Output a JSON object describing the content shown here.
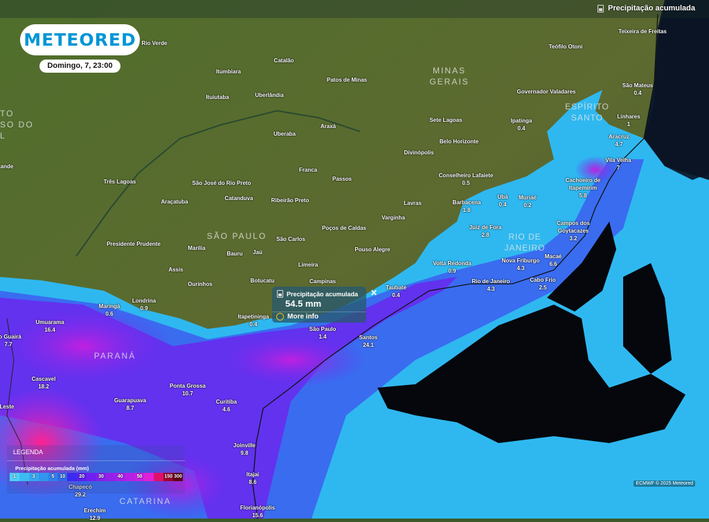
{
  "header": {
    "layer_name": "Precipitação acumulada",
    "layer_icon": "rain-gauge-icon"
  },
  "brand": {
    "logo_text": "METEORED",
    "date": "Domingo, 7, 23:00"
  },
  "popup": {
    "title": "Precipitação acumulada",
    "value": "54.5 mm",
    "more_info": "More info",
    "close": "✕"
  },
  "legend": {
    "heading": "LEGENDA",
    "subtitle": "Precipitação acumulada (mm)",
    "steps": [
      {
        "label": "1",
        "color": "#4fd0f5"
      },
      {
        "label": "",
        "color": "#3cbcf2"
      },
      {
        "label": "3",
        "color": "#35a8ef"
      },
      {
        "label": "",
        "color": "#3296ec"
      },
      {
        "label": "5",
        "color": "#3080ea"
      },
      {
        "label": "10",
        "color": "#2f6ae8"
      },
      {
        "label": "",
        "color": "#3a2bf0"
      },
      {
        "label": "20",
        "color": "#5a20f0"
      },
      {
        "label": "",
        "color": "#7020ee"
      },
      {
        "label": "30",
        "color": "#8520ec"
      },
      {
        "label": "",
        "color": "#9420ea"
      },
      {
        "label": "40",
        "color": "#a620e8"
      },
      {
        "label": "",
        "color": "#b620e6"
      },
      {
        "label": "50",
        "color": "#c820e4"
      },
      {
        "label": "",
        "color": "#e020d8"
      },
      {
        "label": "",
        "color": "#e0106a"
      },
      {
        "label": "150",
        "color": "#a00030"
      },
      {
        "label": "300",
        "color": "#600018"
      }
    ]
  },
  "copyright": "ECMWF © 2025 Meteored",
  "states": [
    {
      "name": "MINAS\nGERAIS"
    },
    {
      "name": "SÃO PAULO"
    },
    {
      "name": "RIO DE\nJANEIRO"
    },
    {
      "name": "ESPÍRITO\nSANTO"
    },
    {
      "name": "PARANÁ"
    },
    {
      "name": "CATARINA"
    },
    {
      "name": "TO\nSO DO\nL"
    }
  ],
  "cities": [
    {
      "name": "Rio Verde",
      "value": ""
    },
    {
      "name": "Catalão",
      "value": ""
    },
    {
      "name": "Itumbiara",
      "value": ""
    },
    {
      "name": "Patos de Minas",
      "value": ""
    },
    {
      "name": "Ituiutaba",
      "value": ""
    },
    {
      "name": "Uberlândia",
      "value": ""
    },
    {
      "name": "Uberaba",
      "value": ""
    },
    {
      "name": "Araxá",
      "value": ""
    },
    {
      "name": "Franca",
      "value": ""
    },
    {
      "name": "Passos",
      "value": ""
    },
    {
      "name": "Três Lagoas",
      "value": ""
    },
    {
      "name": "São José do Rio Preto",
      "value": ""
    },
    {
      "name": "Catanduva",
      "value": ""
    },
    {
      "name": "Ribeirão Preto",
      "value": ""
    },
    {
      "name": "Araçatuba",
      "value": ""
    },
    {
      "name": "Lavras",
      "value": ""
    },
    {
      "name": "Varginha",
      "value": ""
    },
    {
      "name": "Poços de Caldas",
      "value": ""
    },
    {
      "name": "São Carlos",
      "value": ""
    },
    {
      "name": "Presidente Prudente",
      "value": ""
    },
    {
      "name": "Marília",
      "value": ""
    },
    {
      "name": "Pouso Alegre",
      "value": ""
    },
    {
      "name": "Bauru",
      "value": ""
    },
    {
      "name": "Jaú",
      "value": ""
    },
    {
      "name": "Limeira",
      "value": ""
    },
    {
      "name": "Assis",
      "value": ""
    },
    {
      "name": "Botucatu",
      "value": ""
    },
    {
      "name": "Campinas",
      "value": ""
    },
    {
      "name": "Ourinhos",
      "value": ""
    },
    {
      "name": "Sete Lagoas",
      "value": ""
    },
    {
      "name": "Belo Horizonte",
      "value": ""
    },
    {
      "name": "Divinópolis",
      "value": ""
    },
    {
      "name": "Conselheiro Lafaiete",
      "value": "0.5"
    },
    {
      "name": "Barbacena",
      "value": "1.8"
    },
    {
      "name": "Ubá",
      "value": "0.4"
    },
    {
      "name": "Muriaé",
      "value": "0.2"
    },
    {
      "name": "Juiz de Fora",
      "value": "2.8"
    },
    {
      "name": "Nova Friburgo",
      "value": "4.3"
    },
    {
      "name": "Volta Redonda",
      "value": "0.9"
    },
    {
      "name": "Campos dos\nGoytacazes",
      "value": "3.2"
    },
    {
      "name": "Macaé",
      "value": "6.6"
    },
    {
      "name": "Rio de Janeiro",
      "value": "4.3"
    },
    {
      "name": "Cabo Frio",
      "value": "2.5"
    },
    {
      "name": "Taubaté",
      "value": "0.4"
    },
    {
      "name": "Teixeira de Freitas",
      "value": ""
    },
    {
      "name": "Teófilo Otoni",
      "value": ""
    },
    {
      "name": "Governador Valadares",
      "value": ""
    },
    {
      "name": "São Mateus",
      "value": "0.4"
    },
    {
      "name": "Ipatinga",
      "value": "0.4"
    },
    {
      "name": "Linhares",
      "value": "1"
    },
    {
      "name": "Aracruz",
      "value": "4.7"
    },
    {
      "name": "Vila Velha",
      "value": "7"
    },
    {
      "name": "Cachoeiro de\nItapemirim",
      "value": "5.8"
    },
    {
      "name": "Londrina",
      "value": "0.9"
    },
    {
      "name": "Maringá",
      "value": "0.6"
    },
    {
      "name": "Umuarama",
      "value": "16.4"
    },
    {
      "name": "do Guairá",
      "value": "7.7"
    },
    {
      "name": "Cascavel",
      "value": "18.2"
    },
    {
      "name": "Ponta Grossa",
      "value": "10.7"
    },
    {
      "name": "Guarapuava",
      "value": "8.7"
    },
    {
      "name": "Curitiba",
      "value": "4.6"
    },
    {
      "name": "Joinville",
      "value": "9.8"
    },
    {
      "name": "Itajaí",
      "value": "8.6"
    },
    {
      "name": "Chapecó",
      "value": "29.2"
    },
    {
      "name": "Erechim",
      "value": "12.9"
    },
    {
      "name": "Florianópolis",
      "value": "15.6"
    },
    {
      "name": "Leste",
      "value": ""
    },
    {
      "name": "ande",
      "value": ""
    },
    {
      "name": "Itapetininga",
      "value": "0.4"
    },
    {
      "name": "São Paulo",
      "value": "1.4"
    },
    {
      "name": "Santos",
      "value": "24.1"
    }
  ]
}
